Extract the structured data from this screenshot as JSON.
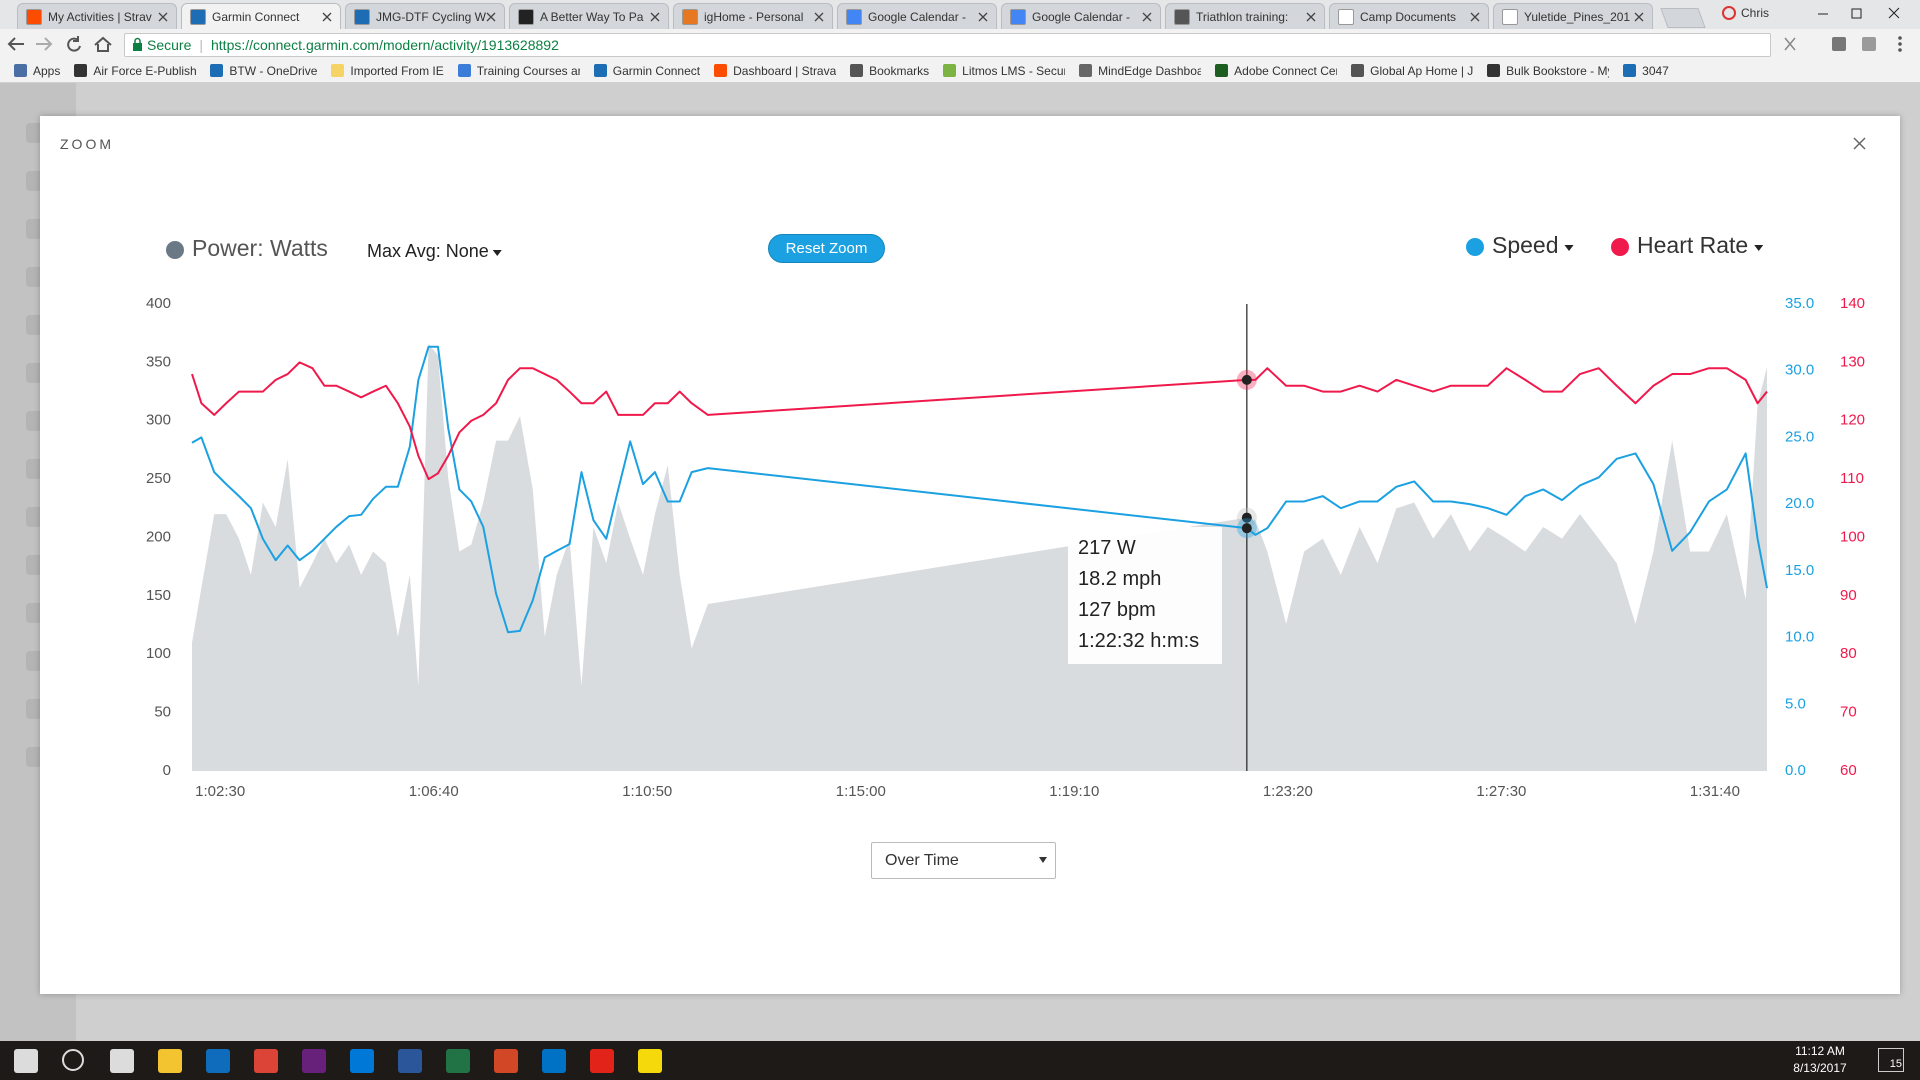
{
  "browser": {
    "tabs": [
      "My Activities | Strav",
      "Garmin Connect",
      "JMG-DTF Cycling W",
      "A Better Way To Pa",
      "igHome - Personal",
      "Google Calendar - ",
      "Google Calendar - ",
      "Triathlon training: ",
      "Camp Documents",
      "Yuletide_Pines_201"
    ],
    "profile": "Chris",
    "secure": "Secure",
    "url": "https://connect.garmin.com/modern/activity/1913628892",
    "bookmarks": [
      "Apps",
      "Air Force E-Publishing",
      "BTW - OneDrive",
      "Imported From IE",
      "Training Courses and",
      "Garmin Connect",
      "Dashboard | Strava",
      "Bookmarks",
      "Litmos LMS - Secure",
      "MindEdge Dashboard",
      "Adobe Connect Cent",
      "Global Ap Home | Jol",
      "Bulk Bookstore - My",
      "3047"
    ]
  },
  "modal": {
    "title": "ZOOM"
  },
  "controls": {
    "max_avg": "Max Avg: None",
    "reset": "Reset Zoom",
    "view": "Over Time"
  },
  "chart_data": {
    "type": "line",
    "x": [
      3717,
      3728,
      3743,
      3757,
      3772,
      3786,
      3800,
      3815,
      3829,
      3843,
      3858,
      3872,
      3886,
      3901,
      3915,
      3929,
      3944,
      3958,
      3972,
      3982,
      3994,
      4005,
      4017,
      4030,
      4044,
      4058,
      4073,
      4087,
      4101,
      4116,
      4130,
      4144,
      4159,
      4173,
      4187,
      4202,
      4216,
      4230,
      4245,
      4259,
      4274,
      4288,
      4302,
      4321,
      4952,
      4962,
      4976,
      4998,
      5019,
      5041,
      5062,
      5084,
      5105,
      5127,
      5148,
      5170,
      5191,
      5213,
      5234,
      5256,
      5278,
      5299,
      5321,
      5342,
      5364,
      5385,
      5407,
      5428,
      5450,
      5471,
      5493,
      5514,
      5536,
      5550,
      5561
    ],
    "xlim": [
      3717,
      5561
    ],
    "xticks": [
      {
        "value": 3750,
        "label": "1:02:30"
      },
      {
        "value": 4000,
        "label": "1:06:40"
      },
      {
        "value": 4250,
        "label": "1:10:50"
      },
      {
        "value": 4500,
        "label": "1:15:00"
      },
      {
        "value": 4750,
        "label": "1:19:10"
      },
      {
        "value": 5000,
        "label": "1:23:20"
      },
      {
        "value": 5250,
        "label": "1:27:30"
      },
      {
        "value": 5500,
        "label": "1:31:40"
      }
    ],
    "ylim": [
      0,
      400
    ],
    "yticks": [
      0,
      50,
      100,
      150,
      200,
      250,
      300,
      350,
      400
    ],
    "y2lim": [
      0,
      35
    ],
    "y2ticks": [
      {
        "value": 0,
        "label": "0.0"
      },
      {
        "value": 5,
        "label": "5.0"
      },
      {
        "value": 10,
        "label": "10.0"
      },
      {
        "value": 15,
        "label": "15.0"
      },
      {
        "value": 20,
        "label": "20.0"
      },
      {
        "value": 25,
        "label": "25.0"
      },
      {
        "value": 30,
        "label": "30.0"
      },
      {
        "value": 35,
        "label": "35.0"
      }
    ],
    "y3lim": [
      60,
      140
    ],
    "y3ticks": [
      60,
      70,
      80,
      90,
      100,
      110,
      120,
      130,
      140
    ],
    "grid": false,
    "series": [
      {
        "name": "Power: Watts",
        "style": "area",
        "axis": "y",
        "color": "#d9dcdf",
        "legend_color": "#6b7986",
        "values": [
          110,
          157,
          220,
          220,
          199,
          168,
          230,
          209,
          267,
          157,
          178,
          199,
          178,
          194,
          168,
          188,
          178,
          115,
          168,
          73,
          366,
          356,
          251,
          188,
          194,
          230,
          283,
          283,
          304,
          241,
          115,
          168,
          199,
          73,
          209,
          178,
          230,
          199,
          168,
          220,
          262,
          168,
          105,
          143,
          217,
          215,
          188,
          126,
          188,
          199,
          168,
          209,
          178,
          225,
          230,
          199,
          220,
          188,
          209,
          199,
          188,
          209,
          199,
          220,
          199,
          178,
          126,
          188,
          283,
          188,
          188,
          220,
          147,
          314,
          346
        ]
      },
      {
        "name": "Speed",
        "style": "line",
        "axis": "y2",
        "color": "#1ba1e2",
        "values": [
          24.6,
          25,
          22.4,
          21.5,
          20.6,
          19.7,
          17.4,
          15.8,
          16.9,
          15.8,
          16.5,
          17.4,
          18.3,
          19.1,
          19.2,
          20.4,
          21.3,
          21.3,
          24.3,
          29.3,
          31.8,
          31.8,
          25.7,
          21.1,
          20.2,
          18.3,
          13.3,
          10.4,
          10.5,
          12.8,
          16,
          16.5,
          17,
          22.4,
          18.8,
          17.4,
          21.1,
          24.7,
          21.5,
          22.4,
          20.2,
          20.2,
          22.4,
          22.7,
          18.2,
          17.7,
          18.2,
          20.2,
          20.2,
          20.6,
          19.7,
          20.2,
          20.2,
          21.3,
          21.7,
          20.2,
          20.2,
          20,
          19.7,
          19.2,
          20.6,
          21.1,
          20.3,
          21.4,
          22,
          23.4,
          23.8,
          21.5,
          16.5,
          17.9,
          20.2,
          21.1,
          23.8,
          17.4,
          13.7
        ]
      },
      {
        "name": "Heart Rate",
        "style": "line",
        "axis": "y3",
        "color": "#f0194b",
        "values": [
          128,
          123,
          121,
          123,
          125,
          125,
          125,
          127,
          128,
          130,
          129,
          126,
          126,
          125,
          124,
          125,
          126,
          123,
          119,
          114,
          110,
          111,
          114,
          118,
          120,
          121,
          123,
          127,
          129,
          129,
          128,
          127,
          125,
          123,
          123,
          125,
          121,
          121,
          121,
          123,
          123,
          125,
          123,
          121,
          127,
          127,
          129,
          126,
          126,
          125,
          125,
          126,
          125,
          127,
          126,
          125,
          126,
          126,
          126,
          129,
          127,
          125,
          125,
          128,
          129,
          126,
          123,
          126,
          128,
          128,
          129,
          129,
          127,
          123,
          125
        ]
      }
    ],
    "crosshair": {
      "value": 4952,
      "label": "1:22:32 h:m:s"
    },
    "tooltip": [
      "217 W",
      "18.2 mph",
      "127 bpm"
    ]
  },
  "taskbar": {
    "time": "11:12 AM",
    "date": "8/13/2017",
    "notifications": "15"
  }
}
